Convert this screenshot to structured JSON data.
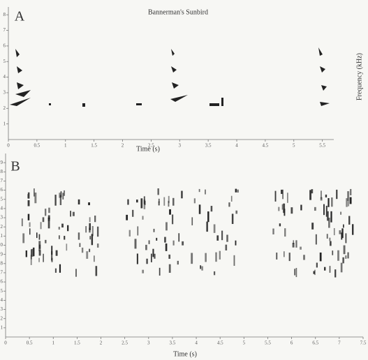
{
  "charts": [
    {
      "type": "spectrogram",
      "panel": "A",
      "title": "Bannerman's Sunbird",
      "xlabel": "Time (s)",
      "ylabel": "Frequency (kHz)",
      "xlim": [
        0,
        5.7
      ],
      "xticks": [
        0,
        0.5,
        1,
        1.5,
        2,
        2.5,
        3,
        3.5,
        4,
        4.5,
        5,
        5.5
      ],
      "ylim": [
        0,
        8.5
      ],
      "yticks": [
        1,
        2,
        3,
        4,
        5,
        6,
        7,
        8
      ]
    },
    {
      "type": "spectrogram",
      "panel": "B",
      "xlabel": "Time (s)",
      "xlim": [
        0,
        7.5
      ],
      "xticks": [
        0,
        0.5,
        1,
        1.5,
        2,
        2.5,
        3,
        3.5,
        4,
        4.5,
        5,
        5.5,
        6,
        6.5,
        7,
        7.5
      ],
      "ylim": [
        0,
        20
      ],
      "yticks": [
        1,
        2,
        3,
        4,
        5,
        6,
        7,
        8,
        9,
        10,
        11,
        12,
        13,
        14,
        15,
        16,
        17,
        18,
        19
      ]
    }
  ]
}
